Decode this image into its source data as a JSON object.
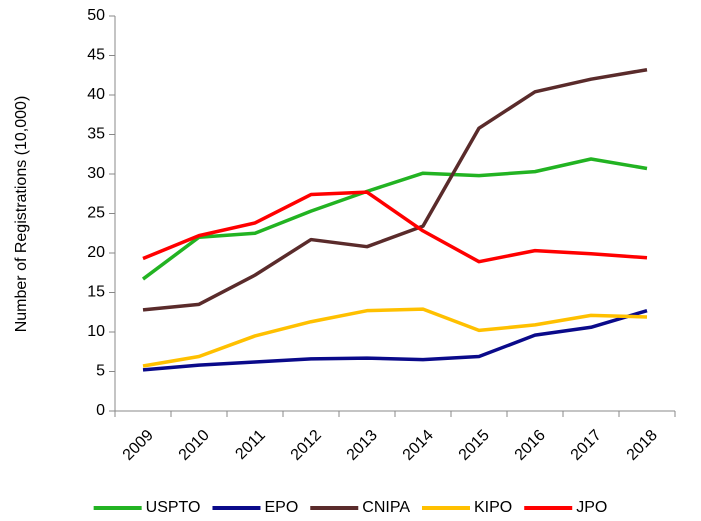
{
  "chart_data": {
    "type": "line",
    "y_label": "Number of Registrations  (10,000)",
    "categories": [
      "2009",
      "2010",
      "2011",
      "2012",
      "2013",
      "2014",
      "2015",
      "2016",
      "2017",
      "2018"
    ],
    "series": [
      {
        "name": "USPTO",
        "color": "#22b322",
        "values": [
          16.7,
          22.0,
          22.5,
          25.3,
          27.8,
          30.1,
          29.8,
          30.3,
          31.9,
          30.7
        ]
      },
      {
        "name": "EPO",
        "color": "#0a0a8a",
        "values": [
          5.2,
          5.8,
          6.2,
          6.6,
          6.7,
          6.5,
          6.9,
          9.6,
          10.6,
          12.7
        ]
      },
      {
        "name": "CNIPA",
        "color": "#5a2b2b",
        "values": [
          12.8,
          13.5,
          17.2,
          21.7,
          20.8,
          23.4,
          35.8,
          40.4,
          42.0,
          43.2
        ]
      },
      {
        "name": "KIPO",
        "color": "#ffc000",
        "values": [
          5.7,
          6.9,
          9.5,
          11.3,
          12.7,
          12.9,
          10.2,
          10.9,
          12.1,
          11.9
        ]
      },
      {
        "name": "JPO",
        "color": "#ff0000",
        "values": [
          19.3,
          22.2,
          23.8,
          27.4,
          27.7,
          22.8,
          18.9,
          20.3,
          19.9,
          19.4
        ]
      }
    ],
    "ylim": [
      0,
      50
    ],
    "yticks": [
      0,
      5,
      10,
      15,
      20,
      25,
      30,
      35,
      40,
      45,
      50
    ],
    "grid": false,
    "legend": "bottom"
  }
}
